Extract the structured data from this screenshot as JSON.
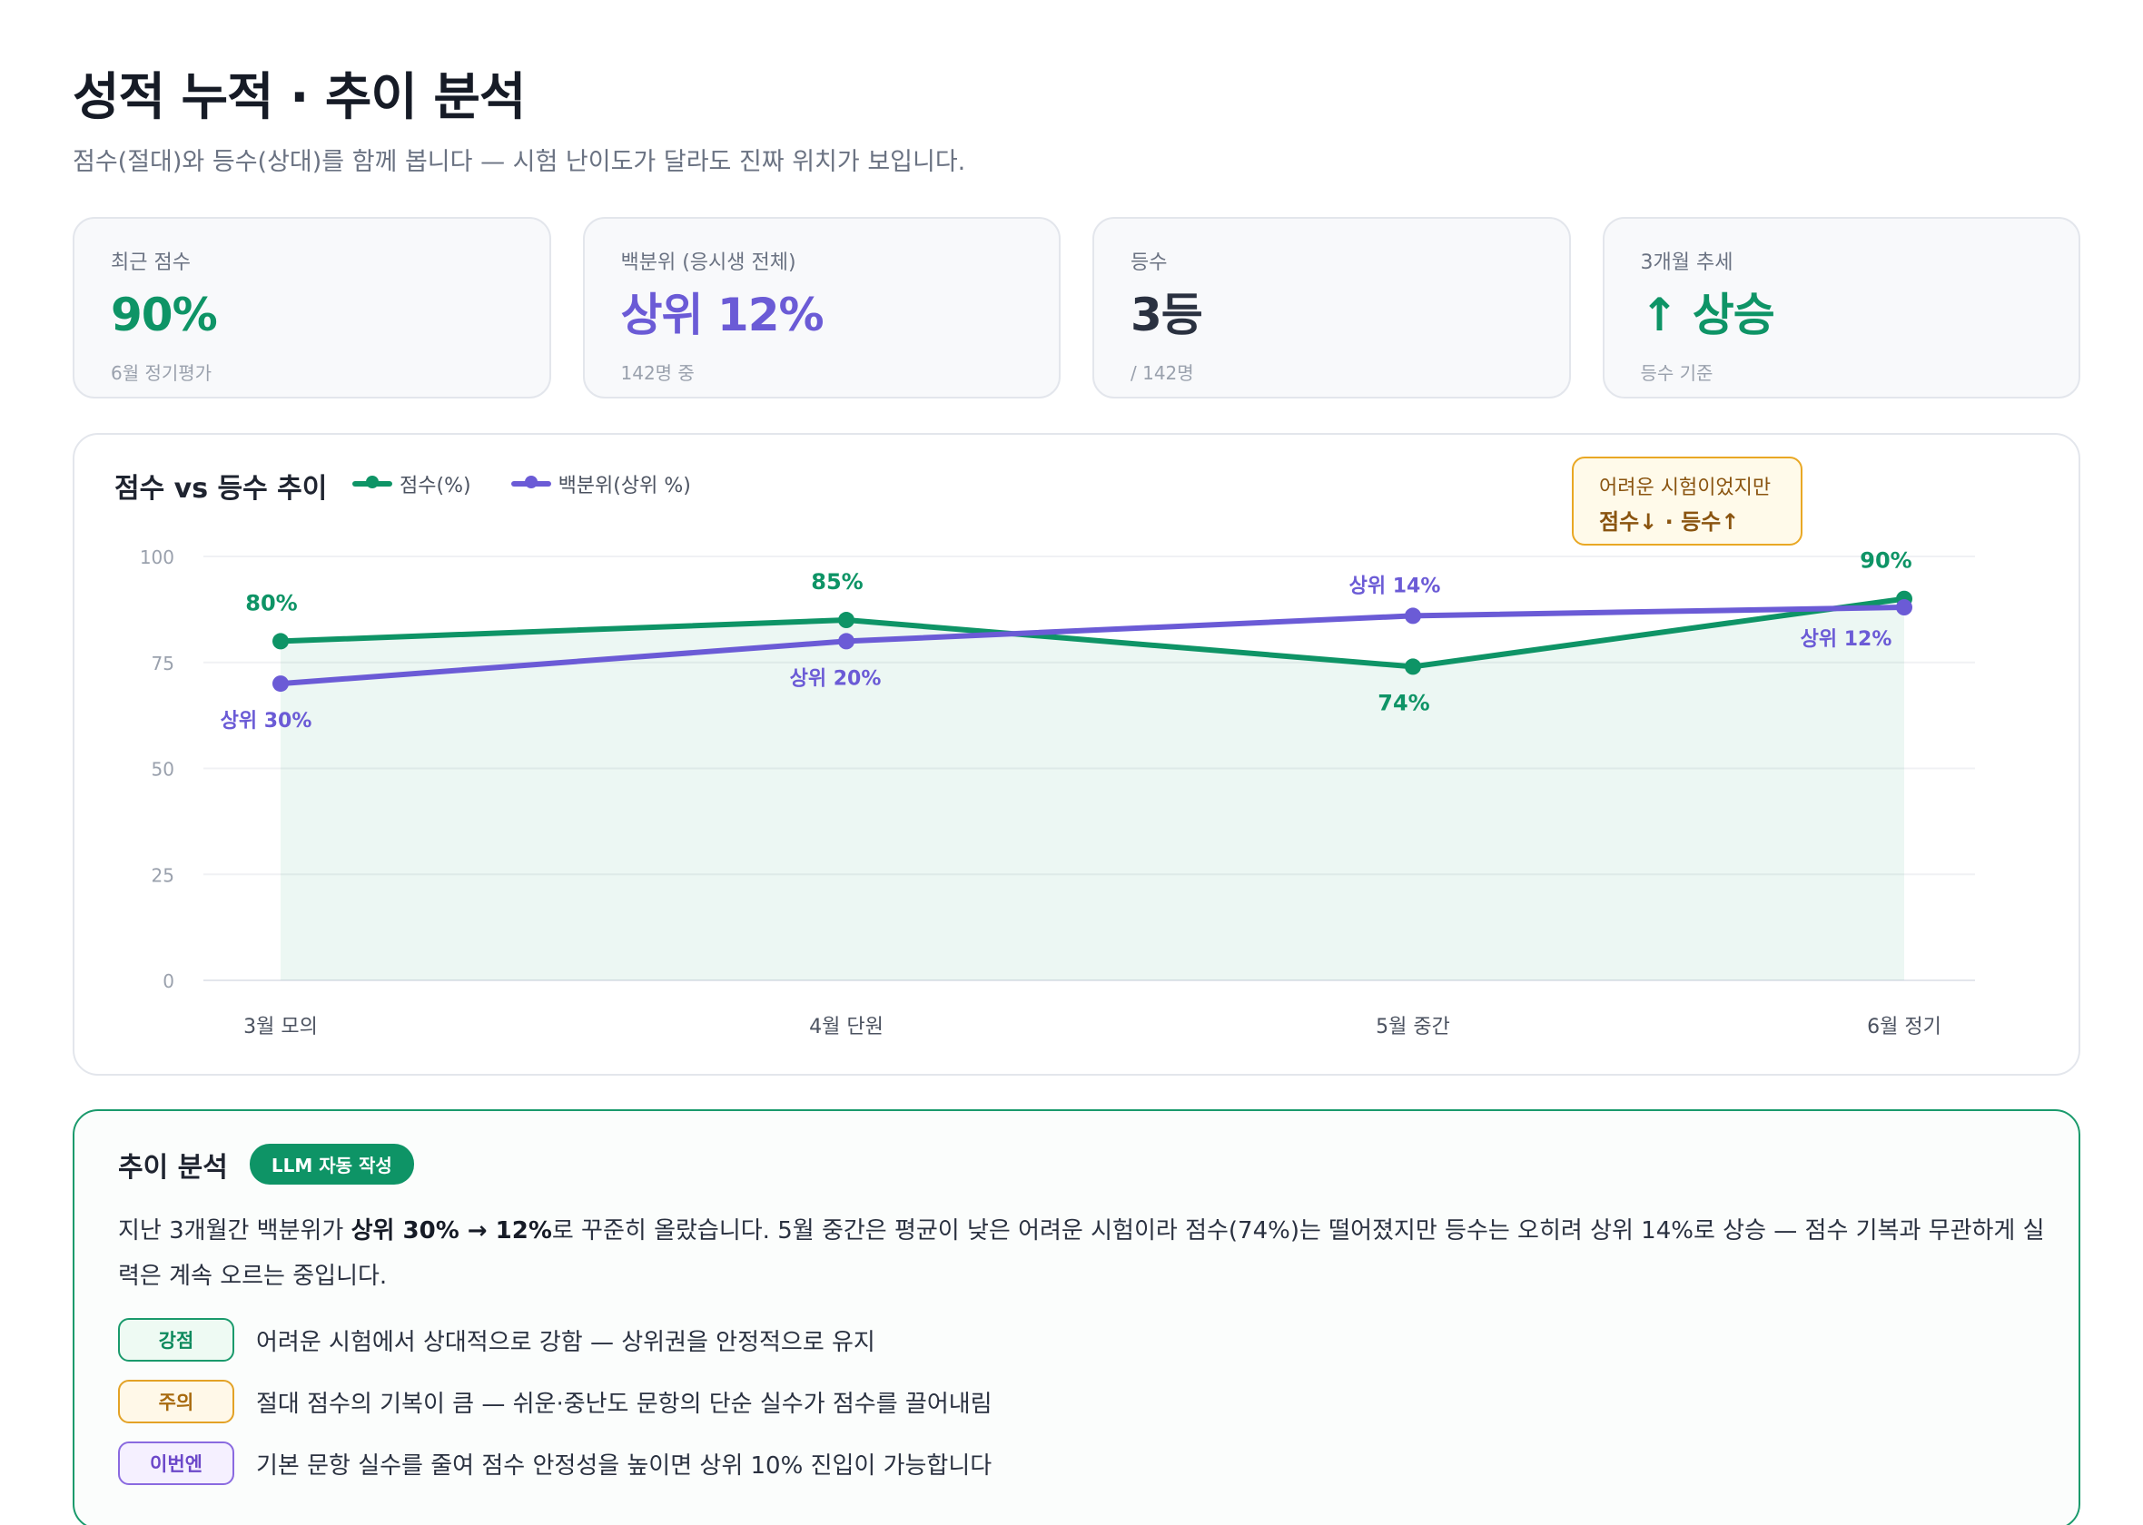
{
  "header": {
    "title": "성적 누적 · 추이 분석",
    "subtitle": "점수(절대)와 등수(상대)를 함께 봅니다 — 시험 난이도가 달라도 진짜 위치가 보입니다."
  },
  "kpis": [
    {
      "label": "최근 점수",
      "value": "90%",
      "sub": "6월 정기평가",
      "color": "#0e9466"
    },
    {
      "label": "백분위 (응시생 전체)",
      "value": "상위 12%",
      "sub": "142명 중",
      "color": "#6b5bd6"
    },
    {
      "label": "등수",
      "value": "3등",
      "sub": "/ 142명",
      "color": "#2a3140"
    },
    {
      "label": "3개월 추세",
      "value": "↑ 상승",
      "sub": "등수 기준",
      "color": "#0e9466"
    }
  ],
  "chart_callout": {
    "line1": "어려운 시험이었지만",
    "line2": "점수↓ · 등수↑"
  },
  "chart_data": {
    "type": "line",
    "title": "점수 vs 등수 추이",
    "categories": [
      "3월 모의",
      "4월 단원",
      "5월 중간",
      "6월 정기"
    ],
    "series": [
      {
        "name": "점수(%)",
        "color": "#0e9466",
        "area": true,
        "values": [
          80,
          85,
          74,
          90
        ],
        "labels": [
          "80%",
          "85%",
          "74%",
          "90%"
        ]
      },
      {
        "name": "백분위(상위 %)",
        "color": "#6b5bd6",
        "area": false,
        "values": [
          70,
          80,
          86,
          88
        ],
        "labels": [
          "상위 30%",
          "상위 20%",
          "상위 14%",
          "상위 12%"
        ]
      }
    ],
    "yticks": [
      0,
      25,
      50,
      75,
      100
    ],
    "ylim": [
      0,
      100
    ],
    "grid": true,
    "legend": "top-left"
  },
  "analysis": {
    "title": "추이 분석",
    "badge": "LLM 자동 작성",
    "body_pre": "지난 3개월간 백분위가 ",
    "body_bold": "상위 30% → 12%",
    "body_post": "로 꾸준히 올랐습니다. 5월 중간은 평균이 낮은 어려운 시험이라 점수(74%)는 떨어졌지만 등수는 오히려 상위 14%로 상승 — 점수 기복과 무관하게 실력은 계속 오르는 중입니다.",
    "rows": [
      {
        "tag": "강점",
        "text": "어려운 시험에서 상대적으로 강함 — 상위권을 안정적으로 유지"
      },
      {
        "tag": "주의",
        "text": "절대 점수의 기복이 큼 — 쉬운·중난도 문항의 단순 실수가 점수를 끌어내림"
      },
      {
        "tag": "이번엔",
        "text": "기본 문항 실수를 줄여 점수 안정성을 높이면 상위 10% 진입이 가능합니다"
      }
    ]
  }
}
